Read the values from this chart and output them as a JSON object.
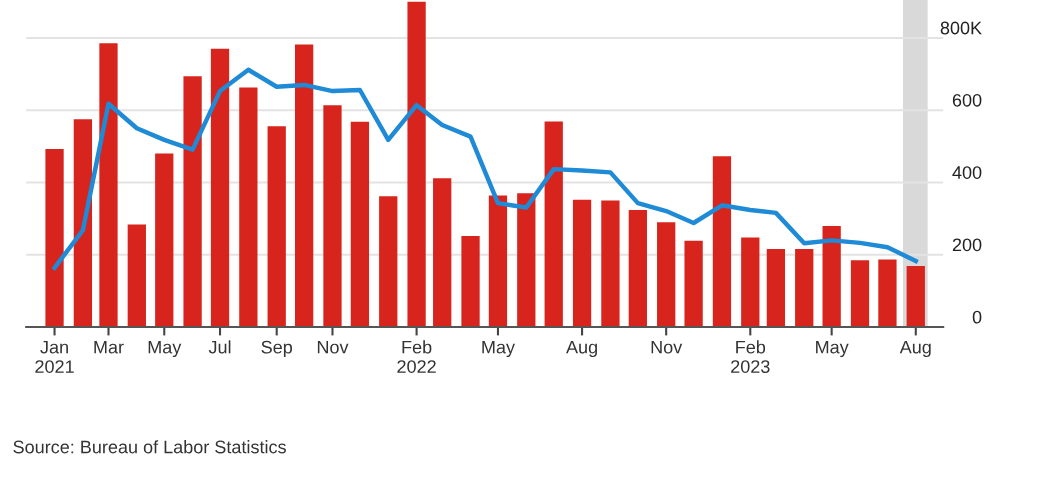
{
  "chart_data": {
    "type": "bar",
    "x": [
      "2021-01",
      "2021-02",
      "2021-03",
      "2021-04",
      "2021-05",
      "2021-06",
      "2021-07",
      "2021-08",
      "2021-09",
      "2021-10",
      "2021-11",
      "2021-12",
      "2022-01",
      "2022-02",
      "2022-03",
      "2022-04",
      "2022-05",
      "2022-06",
      "2022-07",
      "2022-08",
      "2022-09",
      "2022-10",
      "2022-11",
      "2022-12",
      "2023-01",
      "2023-02",
      "2023-03",
      "2023-04",
      "2023-05",
      "2023-06",
      "2023-07",
      "2023-08"
    ],
    "series": [
      {
        "color": "#d7241d",
        "values": [
          493,
          575,
          785,
          284,
          480,
          694,
          770,
          663,
          556,
          782,
          614,
          568,
          362,
          900,
          412,
          252,
          364,
          370,
          569,
          352,
          350,
          324,
          290,
          239,
          473,
          248,
          216,
          216,
          280,
          185,
          187,
          169
        ]
      },
      {
        "type": "line",
        "color": "#1f8ad6",
        "values": [
          164,
          268,
          618,
          550,
          518,
          491,
          653,
          712,
          665,
          670,
          653,
          656,
          518,
          614,
          559,
          527,
          343,
          331,
          437,
          433,
          428,
          343,
          321,
          288,
          337,
          324,
          316,
          232,
          240,
          233,
          221,
          183
        ]
      }
    ],
    "xlim": [
      "2020-12-01",
      "2023-08-31"
    ],
    "xticks": [
      {
        "value": "2021-01",
        "label": "Jan\n2021"
      },
      {
        "value": "2021-03",
        "label": "Mar"
      },
      {
        "value": "2021-05",
        "label": "May"
      },
      {
        "value": "2021-07",
        "label": "Jul"
      },
      {
        "value": "2021-09",
        "label": "Sep"
      },
      {
        "value": "2021-11",
        "label": "Nov"
      },
      {
        "value": "2022-02",
        "label": "Feb\n2022"
      },
      {
        "value": "2022-05",
        "label": "May"
      },
      {
        "value": "2022-08",
        "label": "Aug"
      },
      {
        "value": "2022-11",
        "label": "Nov"
      },
      {
        "value": "2023-02",
        "label": "Feb\n2023"
      },
      {
        "value": "2023-05",
        "label": "May"
      },
      {
        "value": "2023-08",
        "label": "Aug"
      }
    ],
    "ylim": [
      0,
      905
    ],
    "yticks": [
      0,
      200,
      400,
      600,
      {
        "value": 800,
        "label": "800K"
      }
    ],
    "grid": "y",
    "bands": [
      {
        "axis": "x",
        "from": "2023-07-18",
        "to": "2023-08-14",
        "color": "#d9d9d9"
      }
    ],
    "annotations": [
      "Source: Bureau of Labor Statistics"
    ]
  }
}
